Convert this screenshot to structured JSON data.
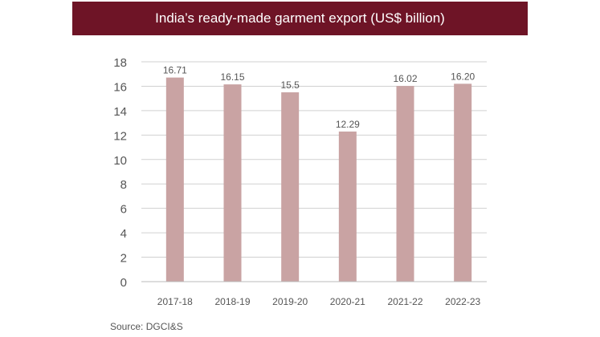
{
  "chart_data": {
    "type": "bar",
    "title": "India’s ready-made garment export (US$ billion)",
    "categories": [
      "2017-18",
      "2018-19",
      "2019-20",
      "2020-21",
      "2021-22",
      "2022-23"
    ],
    "values": [
      16.71,
      16.15,
      15.5,
      12.29,
      16.02,
      16.2
    ],
    "data_labels": [
      "16.71",
      "16.15",
      "15.5",
      "12.29",
      "16.02",
      "16.20"
    ],
    "xlabel": "",
    "ylabel": "",
    "ylim": [
      0,
      18
    ],
    "yticks": [
      0,
      2,
      4,
      6,
      8,
      10,
      12,
      14,
      16,
      18
    ],
    "grid": true,
    "bar_color": "#c9a3a3",
    "title_background": "#6e1426"
  },
  "source": "Source: DGCI&S"
}
